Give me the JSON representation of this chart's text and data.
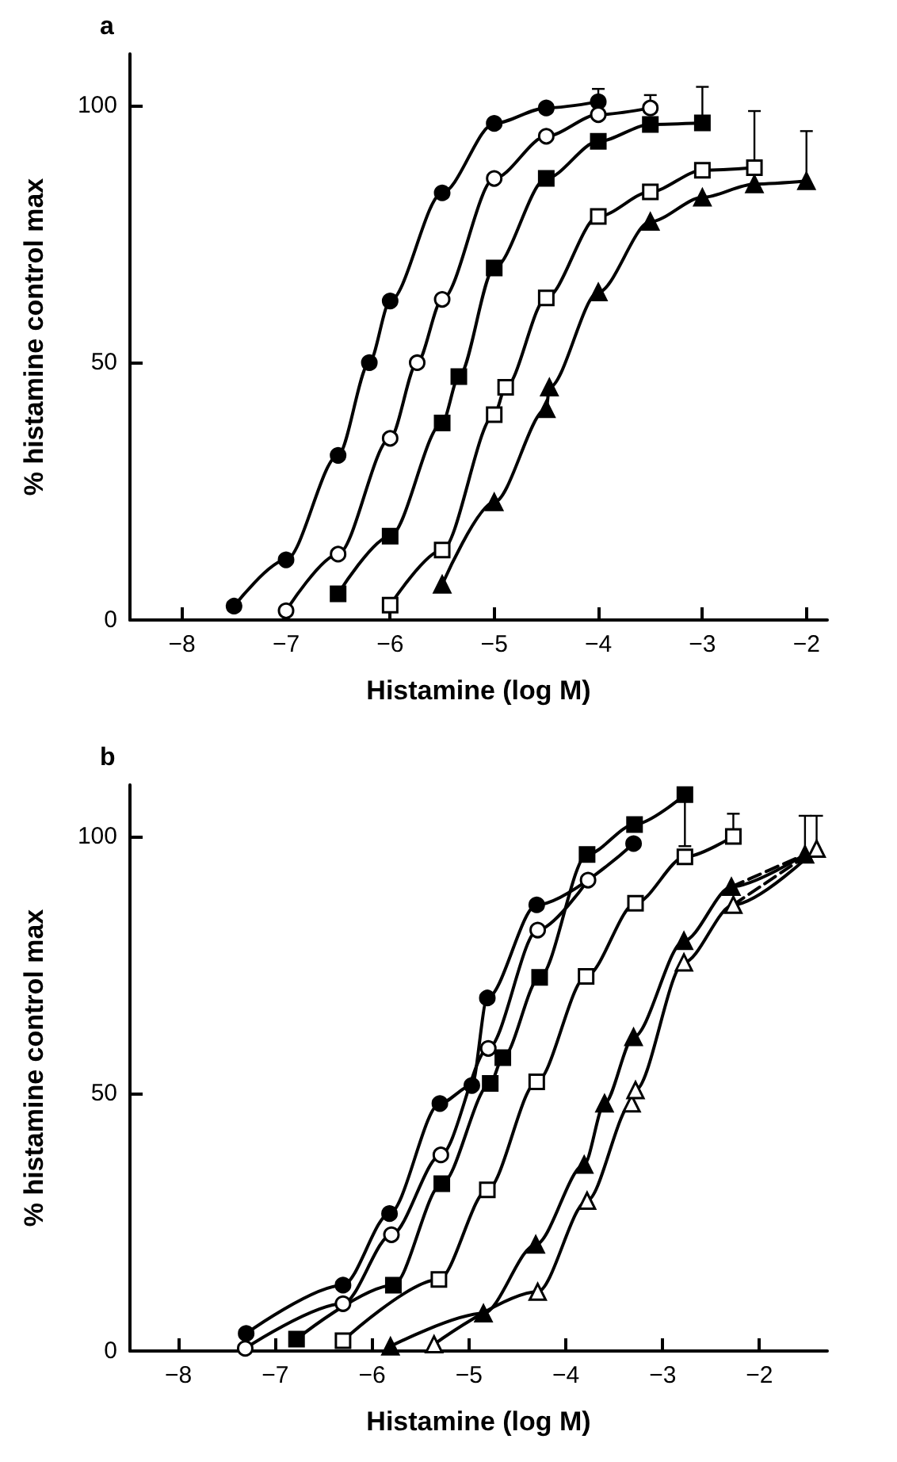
{
  "chart_data": [
    {
      "type": "line",
      "title": "a",
      "xlabel": "Histamine (log M)",
      "ylabel": "% histamine control max",
      "xlim": [
        -8.5,
        -1.8
      ],
      "xticks": [
        -8,
        -7,
        -6,
        -5,
        -4,
        -3,
        -2
      ],
      "ylim": [
        0,
        110
      ],
      "yticks": [
        0,
        50,
        100
      ],
      "grid": false,
      "line_style": "solid",
      "series": [
        {
          "color": "#000000",
          "marker": "circle",
          "x": [
            -7.5,
            -7,
            -6.5,
            -6.2,
            -6,
            -5.5,
            -5,
            -4.5,
            -4
          ],
          "values": [
            2.7,
            11.7,
            32,
            50,
            62,
            83,
            96.5,
            99.5,
            100.7
          ],
          "errors": [
            null,
            null,
            null,
            null,
            null,
            null,
            null,
            null,
            [
              100.7,
              103.2
            ]
          ]
        },
        {
          "color": "#000000",
          "colors": [
            "#ffffff",
            "#ffffff",
            "#ffffff",
            "#ffffff",
            "#ffffff",
            "#ffffff",
            "#ffffff",
            "#ffffff",
            "#ffffff"
          ],
          "marker": "circle",
          "x": [
            -7,
            -6.5,
            -6,
            -5.74,
            -5.5,
            -5,
            -4.5,
            -4,
            -3.5
          ],
          "values": [
            1.8,
            12.8,
            35.3,
            50,
            62.3,
            85.8,
            94,
            98.2,
            99.5
          ],
          "errors": [
            null,
            null,
            null,
            null,
            null,
            null,
            null,
            null,
            [
              99.5,
              102
            ]
          ]
        },
        {
          "color": "#000000",
          "marker": "square",
          "x": [
            -6.5,
            -6,
            -5.5,
            -5.34,
            -5,
            -4.5,
            -4,
            -3.5,
            -3
          ],
          "values": [
            5.1,
            16.3,
            38.3,
            47.3,
            68.4,
            85.8,
            93,
            96.3,
            96.6
          ],
          "errors": [
            null,
            null,
            null,
            null,
            null,
            null,
            null,
            null,
            [
              96.6,
              103.6
            ]
          ]
        },
        {
          "color": "#000000",
          "colors": [
            "#ffffff",
            "#ffffff",
            "#ffffff",
            "#ffffff",
            "#ffffff",
            "#ffffff",
            "#ffffff",
            "#ffffff",
            "#ffffff"
          ],
          "marker": "square",
          "x": [
            -6,
            -5.5,
            -5,
            -4.89,
            -4.5,
            -4,
            -3.5,
            -3,
            -2.5
          ],
          "values": [
            2.9,
            13.6,
            39.9,
            45.2,
            62.6,
            78.4,
            83.2,
            87.4,
            87.9
          ],
          "errors": [
            null,
            null,
            null,
            null,
            null,
            null,
            null,
            null,
            [
              87.9,
              98.9
            ]
          ]
        },
        {
          "color": "#000000",
          "marker": "triangle",
          "x": [
            -5.5,
            -5,
            -4.5,
            -4.47,
            -4,
            -3.5,
            -3,
            -2.5,
            -2
          ],
          "values": [
            6.9,
            22.9,
            41,
            45.2,
            63.7,
            77.4,
            82.1,
            84.7,
            85.3
          ],
          "errors": [
            null,
            null,
            null,
            null,
            null,
            null,
            null,
            null,
            [
              85.3,
              95
            ]
          ]
        }
      ]
    },
    {
      "type": "line",
      "title": "b",
      "xlabel": "Histamine (log M)",
      "ylabel": "% histamine control max",
      "xlim": [
        -8.5,
        -1.3
      ],
      "xticks": [
        -8,
        -7,
        -6,
        -5,
        -4,
        -3,
        -2
      ],
      "ylim": [
        0,
        110
      ],
      "yticks": [
        0,
        50,
        100
      ],
      "grid": false,
      "line_style": "solid",
      "series": [
        {
          "color": "#000000",
          "marker": "circle",
          "x": [
            -7.3,
            -6.3,
            -5.82,
            -5.3,
            -4.97,
            -4.81,
            -4.3,
            -3.3
          ],
          "values": [
            3.4,
            12.8,
            26.7,
            48.1,
            51.6,
            68.6,
            86.7,
            98.6
          ]
        },
        {
          "color": "#000000",
          "colors": [
            "#ffffff",
            "#ffffff",
            "#ffffff",
            "#ffffff",
            "#ffffff",
            "#ffffff",
            "#ffffff"
          ],
          "marker": "circle",
          "x": [
            -7.31,
            -6.3,
            -5.8,
            -5.29,
            -4.8,
            -4.29,
            -3.77
          ],
          "values": [
            0.5,
            9.2,
            22.6,
            38.1,
            58.8,
            81.8,
            91.5
          ]
        },
        {
          "color": "#000000",
          "marker": "square",
          "x": [
            -6.78,
            -5.78,
            -5.28,
            -4.78,
            -4.65,
            -4.27,
            -3.78,
            -3.29,
            -2.77
          ],
          "values": [
            2.3,
            12.8,
            32.5,
            52,
            57,
            72.6,
            96.5,
            102.3,
            108.1
          ],
          "errors": [
            null,
            null,
            null,
            null,
            null,
            null,
            null,
            null,
            [
              98.1,
              108.1
            ]
          ]
        },
        {
          "color": "#000000",
          "colors": [
            "#ffffff",
            "#ffffff",
            "#ffffff",
            "#ffffff",
            "#ffffff",
            "#ffffff",
            "#ffffff",
            "#ffffff"
          ],
          "marker": "square",
          "x": [
            -6.3,
            -5.31,
            -4.81,
            -4.3,
            -3.79,
            -3.28,
            -2.77,
            -2.27
          ],
          "values": [
            2,
            13.9,
            31.3,
            52.3,
            72.8,
            87,
            96,
            100
          ],
          "errors": [
            null,
            null,
            null,
            null,
            null,
            null,
            null,
            [
              100,
              104.4
            ]
          ]
        },
        {
          "color": "#000000",
          "marker": "triangle",
          "x": [
            -5.81,
            -4.85,
            -4.31,
            -3.81,
            -3.6,
            -3.3,
            -2.78,
            -2.29,
            -1.53
          ],
          "values": [
            0.9,
            7.3,
            20.7,
            36.2,
            48.1,
            61,
            79.7,
            90.2,
            96.5
          ],
          "errors": [
            null,
            null,
            null,
            null,
            null,
            null,
            null,
            null,
            [
              96.5,
              104
            ]
          ]
        },
        {
          "color": "#000000",
          "colors": [
            "#ffffff",
            "#ffffff",
            "#ffffff",
            "#ffffff",
            "#ffffff",
            "#ffffff",
            "#ffffff",
            "#ffffff"
          ],
          "marker": "triangle",
          "x": [
            -5.36,
            -4.29,
            -3.78,
            -3.32,
            -3.28,
            -2.78,
            -2.27,
            -1.41
          ],
          "values": [
            1.3,
            11.5,
            29.2,
            48.1,
            50.7,
            75.5,
            86.7,
            97.6
          ],
          "errors": [
            null,
            null,
            null,
            null,
            null,
            null,
            null,
            [
              97.6,
              104
            ]
          ]
        },
        {
          "color": "#000000",
          "marker": "none",
          "line_style": "dashed",
          "x": [
            -2.29,
            -1.53
          ],
          "values": [
            90.2,
            96.5
          ]
        },
        {
          "color": "#000000",
          "marker": "none",
          "line_style": "dashed",
          "x": [
            -2.27,
            -1.41
          ],
          "values": [
            86.7,
            97.6
          ]
        }
      ]
    }
  ]
}
